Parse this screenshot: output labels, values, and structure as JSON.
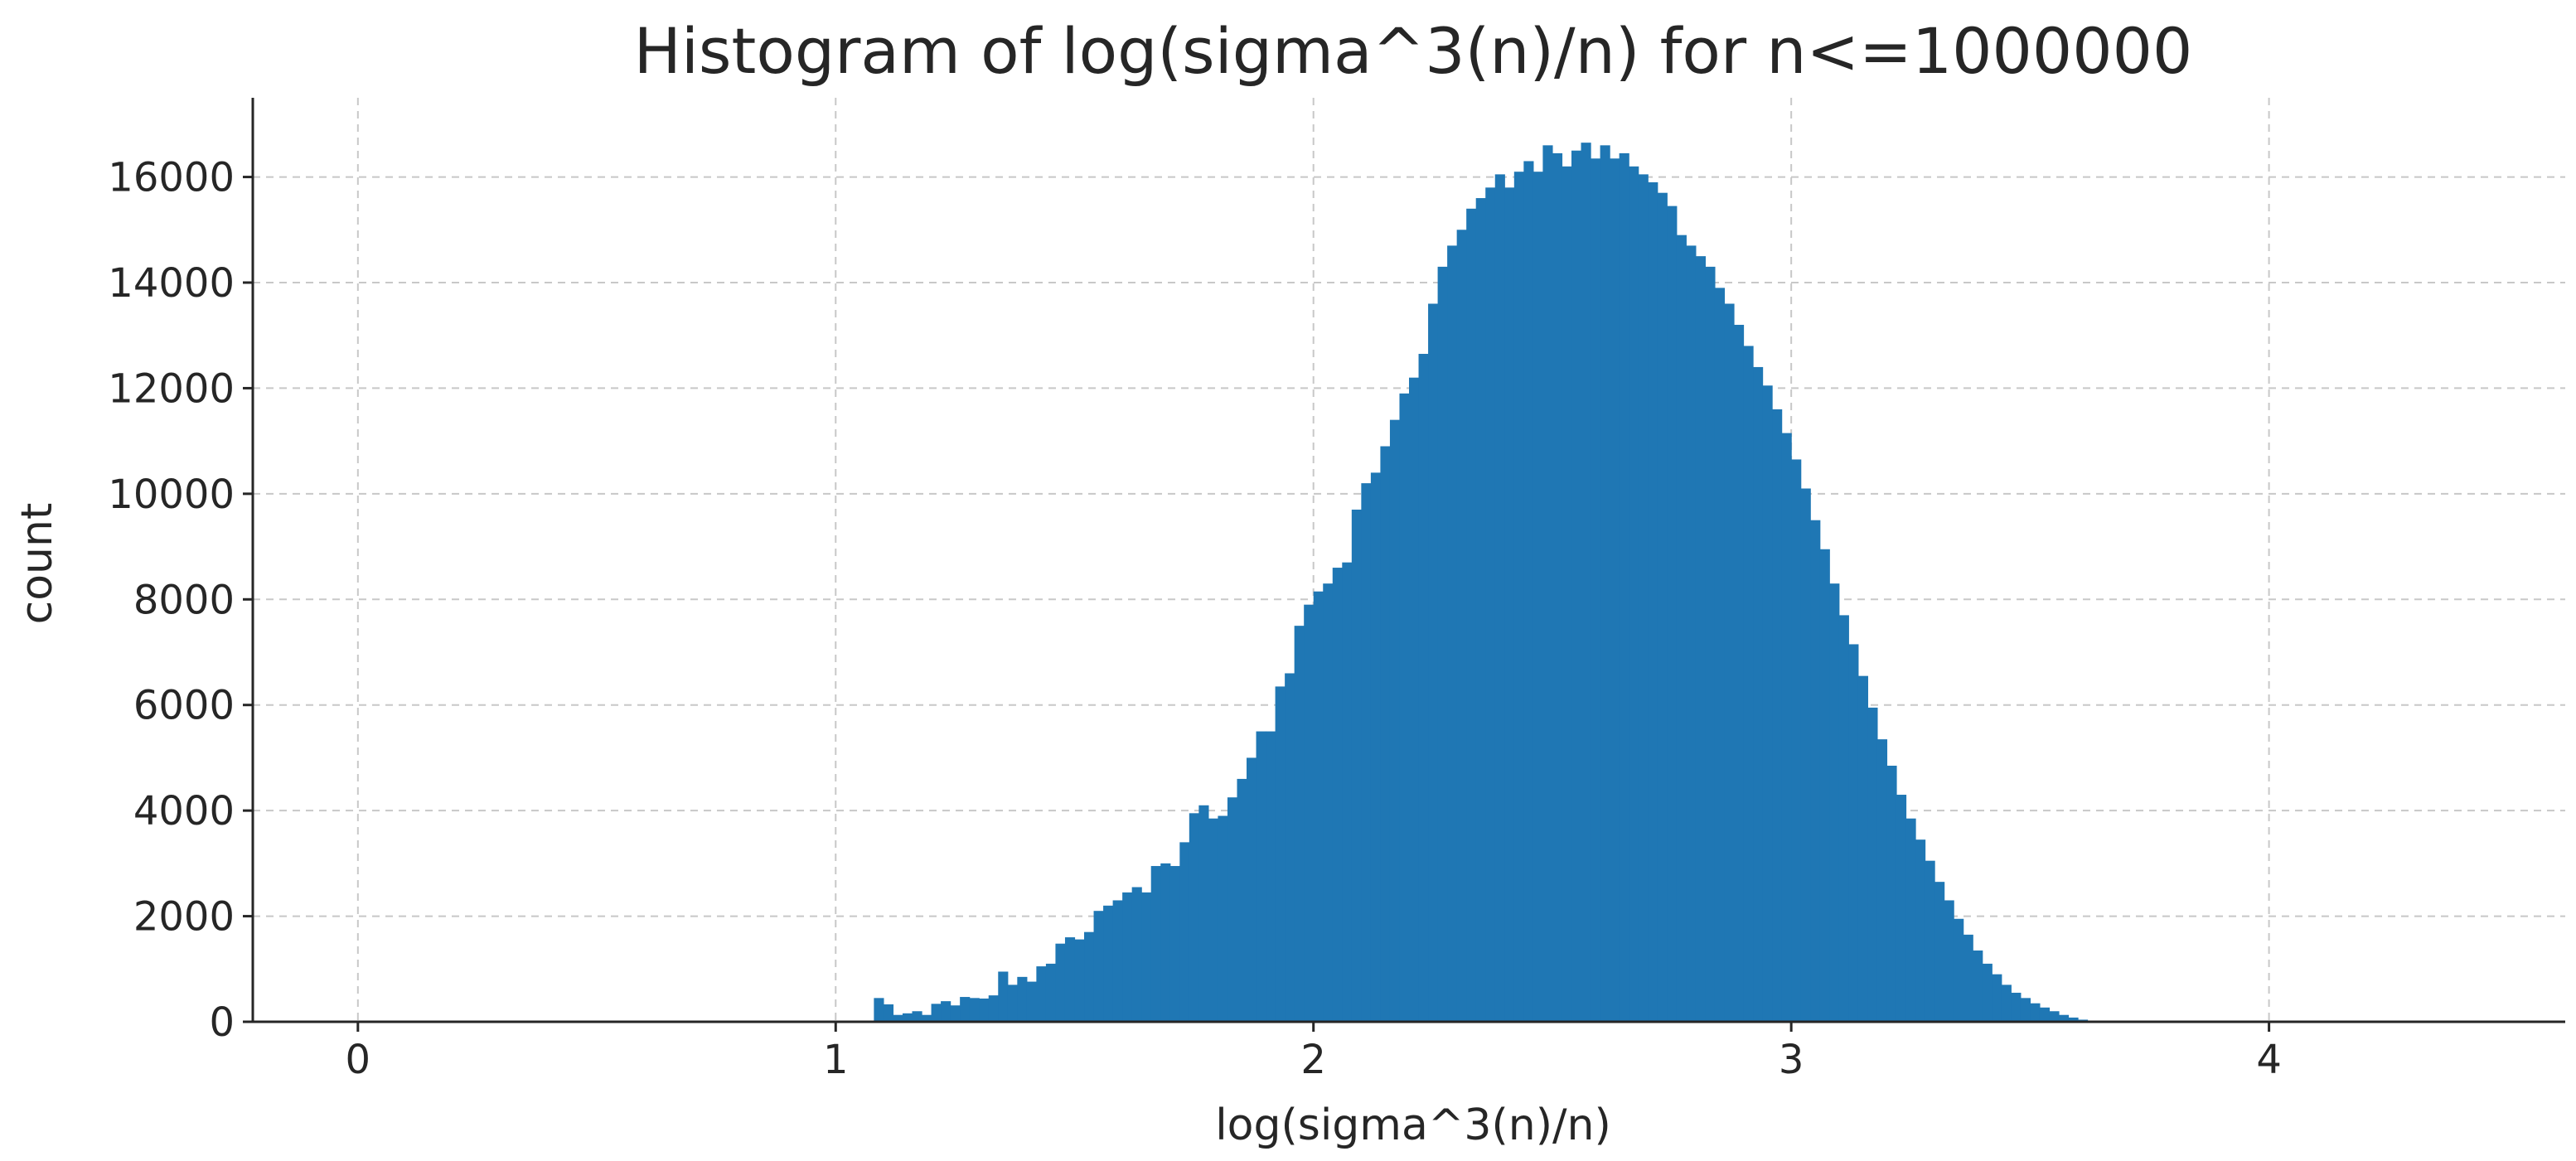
{
  "chart_data": {
    "type": "bar",
    "title": "Histogram of log(sigma^3(n)/n) for n<=1000000",
    "xlabel": "log(sigma^3(n)/n)",
    "ylabel": "count",
    "xlim": [
      -0.22,
      4.62
    ],
    "ylim": [
      0,
      17500
    ],
    "xticks": [
      0,
      1,
      2,
      3,
      4
    ],
    "yticks": [
      0,
      2000,
      4000,
      6000,
      8000,
      10000,
      12000,
      14000,
      16000
    ],
    "grid": true,
    "bar_color": "#1f77b4",
    "bin_start": 1.08,
    "bin_width": 0.02,
    "values": [
      450,
      330,
      130,
      160,
      200,
      130,
      340,
      390,
      310,
      470,
      450,
      440,
      500,
      950,
      700,
      850,
      760,
      1050,
      1100,
      1480,
      1600,
      1560,
      1700,
      2100,
      2200,
      2300,
      2450,
      2550,
      2450,
      2950,
      3000,
      2950,
      3400,
      3950,
      4100,
      3850,
      3900,
      4250,
      4600,
      5000,
      5500,
      5500,
      6350,
      6600,
      7500,
      7900,
      8150,
      8300,
      8600,
      8700,
      9700,
      10200,
      10400,
      10900,
      11400,
      11900,
      12200,
      12650,
      13600,
      14300,
      14700,
      15000,
      15400,
      15600,
      15800,
      16050,
      15800,
      16100,
      16300,
      16100,
      16600,
      16450,
      16200,
      16500,
      16650,
      16350,
      16600,
      16350,
      16450,
      16200,
      16050,
      15900,
      15700,
      15450,
      14900,
      14700,
      14500,
      14300,
      13900,
      13600,
      13200,
      12800,
      12400,
      12050,
      11600,
      11150,
      10650,
      10100,
      9500,
      8950,
      8300,
      7700,
      7150,
      6550,
      5950,
      5350,
      4850,
      4300,
      3850,
      3450,
      3050,
      2650,
      2300,
      1950,
      1650,
      1350,
      1100,
      900,
      700,
      550,
      450,
      350,
      270,
      200,
      130,
      80,
      40,
      20,
      10
    ]
  }
}
